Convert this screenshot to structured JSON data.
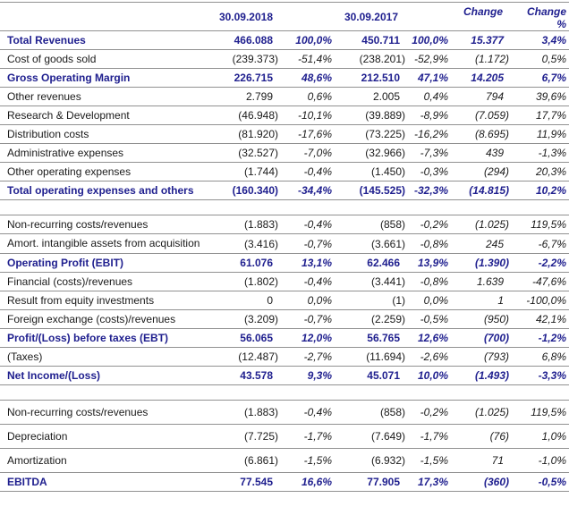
{
  "colors": {
    "accent": "#20208f",
    "text": "#1a1a1a",
    "line": "#919191"
  },
  "header": {
    "period_1": "30.09.2018",
    "period_2": "30.09.2017",
    "change": "Change",
    "change_pct_line1": "Change",
    "change_pct_line2": "%"
  },
  "rows": [
    {
      "label": "Total Revenues",
      "v2018": "466.088",
      "p2018": "100,0%",
      "v2017": "450.711",
      "p2017": "100,0%",
      "chg": "15.377",
      "chgp": "3,4%",
      "emphasis": true
    },
    {
      "label": "Cost of goods sold",
      "v2018": "(239.373)",
      "p2018": "-51,4%",
      "v2017": "(238.201)",
      "p2017": "-52,9%",
      "chg": "(1.172)",
      "chgp": "0,5%",
      "emphasis": false
    },
    {
      "label": "Gross Operating Margin",
      "v2018": "226.715",
      "p2018": "48,6%",
      "v2017": "212.510",
      "p2017": "47,1%",
      "chg": "14.205",
      "chgp": "6,7%",
      "emphasis": true
    },
    {
      "label": "Other revenues",
      "v2018": "2.799",
      "p2018": "0,6%",
      "v2017": "2.005",
      "p2017": "0,4%",
      "chg": "794",
      "chgp": "39,6%",
      "emphasis": false
    },
    {
      "label": "Research & Development",
      "v2018": "(46.948)",
      "p2018": "-10,1%",
      "v2017": "(39.889)",
      "p2017": "-8,9%",
      "chg": "(7.059)",
      "chgp": "17,7%",
      "emphasis": false
    },
    {
      "label": "Distribution costs",
      "v2018": "(81.920)",
      "p2018": "-17,6%",
      "v2017": "(73.225)",
      "p2017": "-16,2%",
      "chg": "(8.695)",
      "chgp": "11,9%",
      "emphasis": false
    },
    {
      "label": "Administrative expenses",
      "v2018": "(32.527)",
      "p2018": "-7,0%",
      "v2017": "(32.966)",
      "p2017": "-7,3%",
      "chg": "439",
      "chgp": "-1,3%",
      "emphasis": false
    },
    {
      "label": "Other operating expenses",
      "v2018": "(1.744)",
      "p2018": "-0,4%",
      "v2017": "(1.450)",
      "p2017": "-0,3%",
      "chg": "(294)",
      "chgp": "20,3%",
      "emphasis": false
    },
    {
      "label": "Total operating expenses and others",
      "v2018": "(160.340)",
      "p2018": "-34,4%",
      "v2017": "(145.525)",
      "p2017": "-32,3%",
      "chg": "(14.815)",
      "chgp": "10,2%",
      "emphasis": true
    },
    {
      "gap": true
    },
    {
      "label": "Non-recurring costs/revenues",
      "v2018": "(1.883)",
      "p2018": "-0,4%",
      "v2017": "(858)",
      "p2017": "-0,2%",
      "chg": "(1.025)",
      "chgp": "119,5%",
      "emphasis": false
    },
    {
      "label": "Amort. intangible assets from acquisition",
      "v2018": "(3.416)",
      "p2018": "-0,7%",
      "v2017": "(3.661)",
      "p2017": "-0,8%",
      "chg": "245",
      "chgp": "-6,7%",
      "emphasis": false,
      "wrap": true
    },
    {
      "label": "Operating Profit (EBIT)",
      "v2018": "61.076",
      "p2018": "13,1%",
      "v2017": "62.466",
      "p2017": "13,9%",
      "chg": "(1.390)",
      "chgp": "-2,2%",
      "emphasis": true
    },
    {
      "label": "Financial (costs)/revenues",
      "v2018": "(1.802)",
      "p2018": "-0,4%",
      "v2017": "(3.441)",
      "p2017": "-0,8%",
      "chg": "1.639",
      "chgp": "-47,6%",
      "emphasis": false
    },
    {
      "label": "Result from equity investments",
      "v2018": "0",
      "p2018": "0,0%",
      "v2017": "(1)",
      "p2017": "0,0%",
      "chg": "1",
      "chgp": "-100,0%",
      "emphasis": false
    },
    {
      "label": "Foreign exchange (costs)/revenues",
      "v2018": "(3.209)",
      "p2018": "-0,7%",
      "v2017": "(2.259)",
      "p2017": "-0,5%",
      "chg": "(950)",
      "chgp": "42,1%",
      "emphasis": false
    },
    {
      "label": "Profit/(Loss) before taxes (EBT)",
      "v2018": "56.065",
      "p2018": "12,0%",
      "v2017": "56.765",
      "p2017": "12,6%",
      "chg": "(700)",
      "chgp": "-1,2%",
      "emphasis": true
    },
    {
      "label": "(Taxes)",
      "v2018": "(12.487)",
      "p2018": "-2,7%",
      "v2017": "(11.694)",
      "p2017": "-2,6%",
      "chg": "(793)",
      "chgp": "6,8%",
      "emphasis": false
    },
    {
      "label": "Net Income/(Loss)",
      "v2018": "43.578",
      "p2018": "9,3%",
      "v2017": "45.071",
      "p2017": "10,0%",
      "chg": "(1.493)",
      "chgp": "-3,3%",
      "emphasis": true
    },
    {
      "gap": true
    },
    {
      "label": "Non-recurring costs/revenues",
      "v2018": "(1.883)",
      "p2018": "-0,4%",
      "v2017": "(858)",
      "p2017": "-0,2%",
      "chg": "(1.025)",
      "chgp": "119,5%",
      "emphasis": false,
      "tall": true
    },
    {
      "label": "Depreciation",
      "v2018": "(7.725)",
      "p2018": "-1,7%",
      "v2017": "(7.649)",
      "p2017": "-1,7%",
      "chg": "(76)",
      "chgp": "1,0%",
      "emphasis": false,
      "tall": true
    },
    {
      "label": "Amortization",
      "v2018": "(6.861)",
      "p2018": "-1,5%",
      "v2017": "(6.932)",
      "p2017": "-1,5%",
      "chg": "71",
      "chgp": "-1,0%",
      "emphasis": false,
      "tall": true
    },
    {
      "label": "EBITDA",
      "v2018": "77.545",
      "p2018": "16,6%",
      "v2017": "77.905",
      "p2017": "17,3%",
      "chg": "(360)",
      "chgp": "-0,5%",
      "emphasis": true
    }
  ]
}
